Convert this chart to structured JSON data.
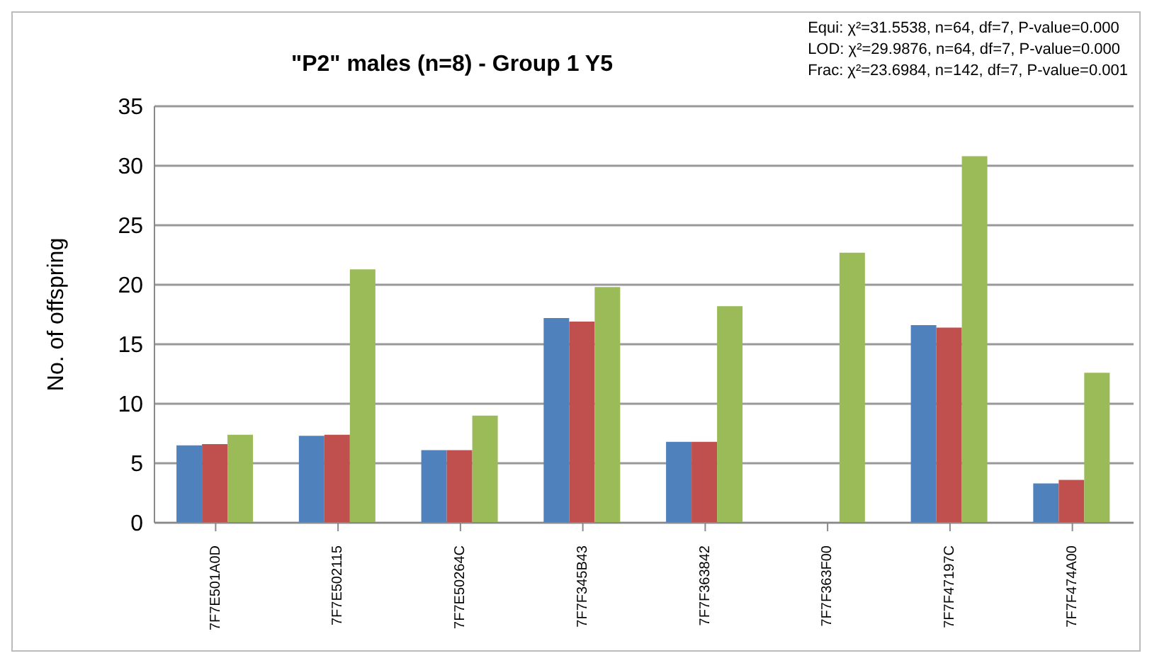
{
  "chart_data": {
    "type": "bar",
    "title": "\"P2\" males  (n=8) - Group 1 Y5",
    "ylabel": "No. of offspring",
    "annotations": [
      "Equi:  χ²=31.5538, n=64, df=7, P-value=0.000",
      "LOD:  χ²=29.9876, n=64, df=7, P-value=0.000",
      "Frac:  χ²=23.6984, n=142, df=7, P-value=0.001"
    ],
    "categories": [
      "7F7E501A0D",
      "7F7E502115",
      "7F7E50264C",
      "7F7F345B43",
      "7F7F363842",
      "7F7F363F00",
      "7F7F47197C",
      "7F7F474A00"
    ],
    "series": [
      {
        "color": "#4f81bd",
        "values": [
          6.5,
          7.3,
          6.1,
          17.2,
          6.8,
          0,
          16.6,
          3.3
        ]
      },
      {
        "color": "#c0504d",
        "values": [
          6.6,
          7.4,
          6.1,
          16.9,
          6.8,
          0,
          16.4,
          3.6
        ]
      },
      {
        "color": "#9bbb59",
        "values": [
          7.4,
          21.3,
          9.0,
          19.8,
          18.2,
          22.7,
          30.8,
          12.6
        ]
      }
    ],
    "ylim": [
      0,
      35
    ],
    "yticks": [
      0,
      5,
      10,
      15,
      20,
      25,
      30,
      35
    ],
    "grid": "y",
    "legend": false
  }
}
